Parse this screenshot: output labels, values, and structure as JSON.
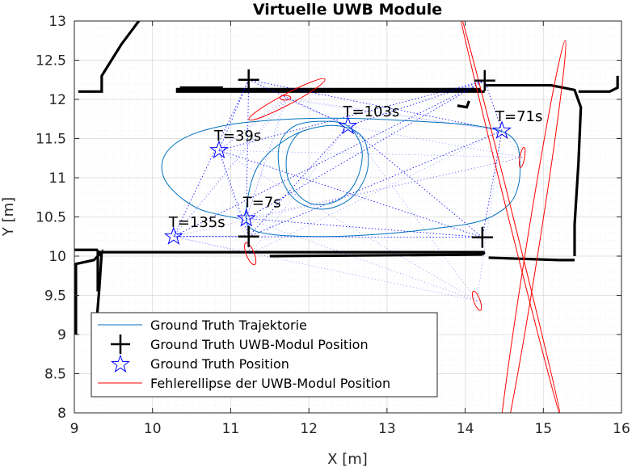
{
  "chart_data": {
    "type": "scatter",
    "title": "Virtuelle UWB Module",
    "xlabel": "X [m]",
    "ylabel": "Y [m]",
    "xlim": [
      9,
      16
    ],
    "ylim": [
      8,
      13
    ],
    "xticks": [
      9,
      10,
      11,
      12,
      13,
      14,
      15,
      16
    ],
    "yticks": [
      8,
      8.5,
      9,
      9.5,
      10,
      10.5,
      11,
      11.5,
      12,
      12.5,
      13
    ],
    "grid": true,
    "legend_position": "bottom-left",
    "colors": {
      "trajectory": "#0072bd",
      "ellipse": "#ff0000",
      "module": "#000000",
      "position": "#0000ff",
      "map": "#000000"
    },
    "legend": [
      "Ground Truth Trajektorie",
      "Ground Truth UWB-Modul Position",
      "Ground Truth Position",
      "Fehlerellipse der UWB-Modul Position"
    ],
    "uwb_modules": [
      {
        "x": 11.23,
        "y": 12.25
      },
      {
        "x": 14.25,
        "y": 12.24
      },
      {
        "x": 11.23,
        "y": 10.25
      },
      {
        "x": 14.22,
        "y": 10.24
      }
    ],
    "ground_truth_positions": [
      {
        "label": "T=7s",
        "x": 11.2,
        "y": 10.48
      },
      {
        "label": "T=39s",
        "x": 10.85,
        "y": 11.35
      },
      {
        "label": "T=71s",
        "x": 14.47,
        "y": 11.6
      },
      {
        "label": "T=103s",
        "x": 12.5,
        "y": 11.66
      },
      {
        "label": "T=135s",
        "x": 10.27,
        "y": 10.25
      }
    ],
    "trajectory": [
      [
        11.1,
        10.48
      ],
      [
        10.6,
        10.6
      ],
      [
        10.25,
        10.85
      ],
      [
        10.12,
        11.1
      ],
      [
        10.2,
        11.35
      ],
      [
        10.5,
        11.55
      ],
      [
        11.0,
        11.68
      ],
      [
        11.6,
        11.74
      ],
      [
        12.2,
        11.76
      ],
      [
        12.8,
        11.75
      ],
      [
        13.4,
        11.72
      ],
      [
        14.0,
        11.68
      ],
      [
        14.45,
        11.6
      ],
      [
        14.65,
        11.45
      ],
      [
        14.7,
        11.2
      ],
      [
        14.68,
        10.9
      ],
      [
        14.55,
        10.65
      ],
      [
        14.2,
        10.45
      ],
      [
        13.6,
        10.35
      ],
      [
        12.9,
        10.28
      ],
      [
        12.2,
        10.25
      ],
      [
        11.5,
        10.28
      ],
      [
        11.22,
        10.4
      ],
      [
        11.22,
        10.75
      ],
      [
        11.35,
        11.15
      ],
      [
        11.65,
        11.45
      ],
      [
        12.0,
        11.62
      ],
      [
        12.4,
        11.66
      ],
      [
        12.7,
        11.5
      ],
      [
        12.75,
        11.1
      ],
      [
        12.55,
        10.75
      ],
      [
        12.2,
        10.6
      ],
      [
        11.85,
        10.7
      ],
      [
        11.65,
        11.0
      ],
      [
        11.62,
        11.4
      ],
      [
        11.8,
        11.65
      ],
      [
        12.15,
        11.72
      ],
      [
        12.5,
        11.66
      ],
      [
        12.68,
        11.35
      ],
      [
        12.6,
        10.95
      ],
      [
        12.35,
        10.7
      ],
      [
        12.0,
        10.68
      ],
      [
        11.75,
        10.95
      ],
      [
        11.72,
        11.3
      ],
      [
        11.85,
        11.55
      ],
      [
        12.0,
        11.62
      ]
    ],
    "error_ellipses": [
      {
        "cx": 11.72,
        "cy": 12.0,
        "rx": 0.55,
        "ry": 0.07,
        "angle_deg": -28
      },
      {
        "cx": 11.7,
        "cy": 12.02,
        "rx": 0.07,
        "ry": 0.03,
        "angle_deg": 0
      },
      {
        "cx": 11.25,
        "cy": 10.03,
        "rx": 0.15,
        "ry": 0.05,
        "angle_deg": 68
      },
      {
        "cx": 14.15,
        "cy": 9.43,
        "rx": 0.13,
        "ry": 0.04,
        "angle_deg": 70
      },
      {
        "cx": 14.73,
        "cy": 11.26,
        "rx": 0.13,
        "ry": 0.03,
        "angle_deg": -80
      },
      {
        "cx": 14.85,
        "cy": 10.04,
        "rx": 2.75,
        "ry": 0.08,
        "angle_deg": -81
      },
      {
        "cx": 14.57,
        "cy": 10.55,
        "rx": 2.7,
        "ry": 0.03,
        "angle_deg": 76
      }
    ],
    "dotted_links": "each UWB module to each ground truth position"
  }
}
